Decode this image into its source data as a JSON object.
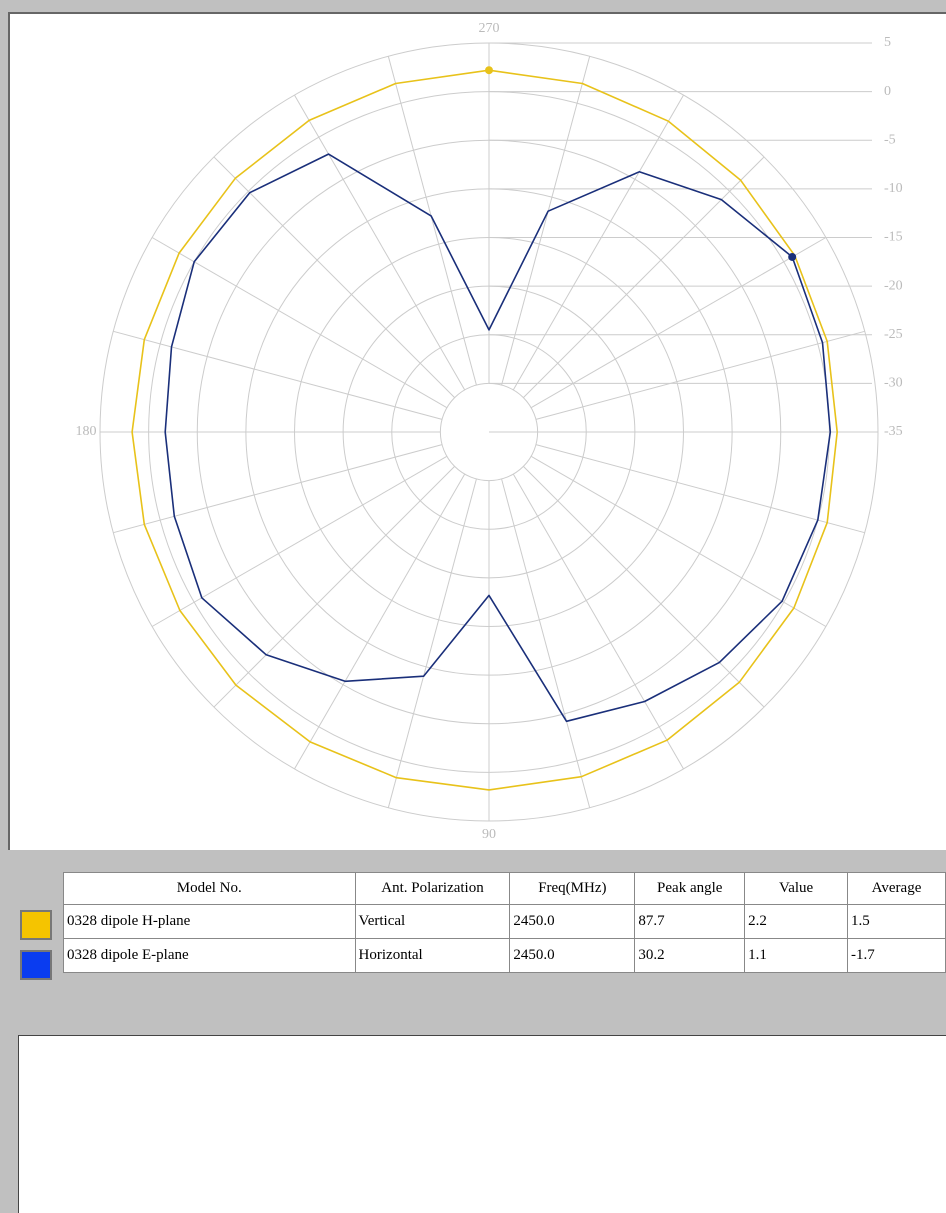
{
  "chart_data": {
    "type": "polar",
    "rlim": [
      -35,
      5
    ],
    "rticks": [
      5,
      0,
      -5,
      -10,
      -15,
      -20,
      -25,
      -30,
      -35
    ],
    "thetaticks": [
      270,
      180,
      90
    ],
    "theta": [
      0,
      15,
      30,
      45,
      60,
      75,
      90,
      105,
      120,
      135,
      150,
      165,
      180,
      195,
      210,
      225,
      240,
      255,
      270,
      285,
      300,
      315,
      330,
      345
    ],
    "series": [
      {
        "name": "0328 dipole H-plane",
        "color": "#e8c21a",
        "values": [
          0.8,
          1.0,
          1.2,
          1.4,
          1.6,
          1.7,
          1.8,
          1.8,
          1.8,
          1.8,
          1.7,
          1.7,
          1.7,
          1.7,
          1.8,
          1.9,
          2.0,
          2.1,
          2.2,
          2.1,
          1.9,
          1.6,
          1.3,
          1.0
        ],
        "marker": {
          "angle": 270,
          "value": 2.2
        }
      },
      {
        "name": "0328 dipole E-plane",
        "color": "#1a2f7a",
        "values": [
          0.1,
          0.0,
          -0.2,
          -1.5,
          -3.0,
          -4.2,
          -18.2,
          -9.0,
          -5.4,
          -2.6,
          -0.9,
          -1.5,
          -1.7,
          -1.2,
          0.0,
          -0.2,
          -2.0,
          -12.0,
          -24.5,
          -11.5,
          -4.1,
          -1.2,
          1.0,
          0.5
        ],
        "marker": {
          "angle": 330,
          "value": 1.0
        }
      }
    ]
  },
  "table": {
    "headers": [
      "Model No.",
      "Ant. Polarization",
      "Freq(MHz)",
      "Peak angle",
      "Value",
      "Average"
    ],
    "rows": [
      [
        "0328 dipole H-plane",
        "Vertical",
        "2450.0",
        "87.7",
        "2.2",
        "1.5"
      ],
      [
        "0328 dipole E-plane",
        "Horizontal",
        "2450.0",
        "30.2",
        "1.1",
        "-1.7"
      ]
    ],
    "swatches": [
      "#f5c400",
      "#0a3cf0"
    ]
  }
}
